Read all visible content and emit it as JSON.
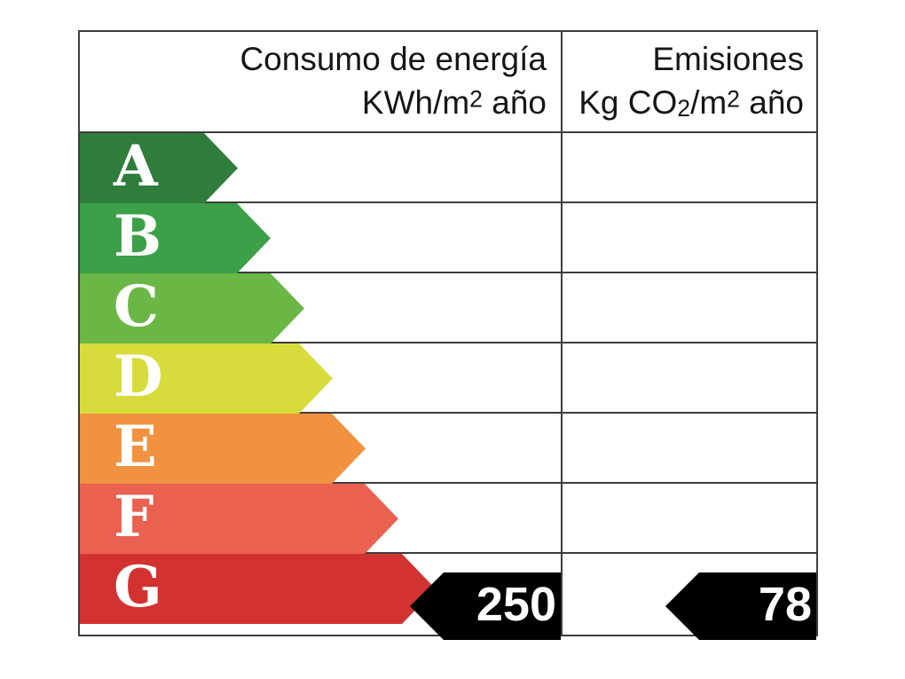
{
  "page": {
    "background": "#ffffff"
  },
  "table": {
    "border_color": "#3d3d3d"
  },
  "header": {
    "consumption": {
      "line1": "Consumo de energía",
      "line2": {
        "pre": "KWh/m",
        "sup": "2",
        "post": " año"
      }
    },
    "emissions": {
      "line1": "Emisiones",
      "line2": {
        "pre": "Kg CO",
        "sub": "2",
        "mid": "/m",
        "sup": "2",
        "post": " año"
      }
    }
  },
  "scale": {
    "letter_color": "#ffffff",
    "rows": [
      {
        "letter": "A",
        "color": "#2f7d3b",
        "arrow_width": 178
      },
      {
        "letter": "B",
        "color": "#3ba047",
        "arrow_width": 215
      },
      {
        "letter": "C",
        "color": "#6ab745",
        "arrow_width": 253
      },
      {
        "letter": "D",
        "color": "#d7dc3c",
        "arrow_width": 285
      },
      {
        "letter": "E",
        "color": "#f19240",
        "arrow_width": 322
      },
      {
        "letter": "F",
        "color": "#ea6150",
        "arrow_width": 359
      },
      {
        "letter": "G",
        "color": "#d23331",
        "arrow_width": 401
      }
    ]
  },
  "ratings": {
    "consumption_value": "250",
    "emissions_value": "78",
    "marker_color": "#000000",
    "value_color": "#ffffff"
  }
}
